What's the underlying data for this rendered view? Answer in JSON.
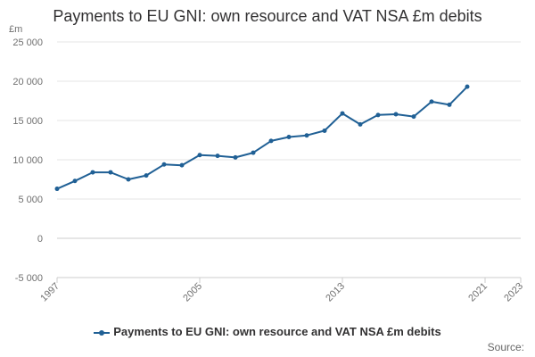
{
  "chart_data": {
    "type": "line",
    "title": "Payments to EU GNI: own resource and VAT NSA £m debits",
    "unit_label": "£m",
    "y_ticks": [
      "25 000",
      "20 000",
      "15 000",
      "10 000",
      "5 000",
      "0",
      "-5 000"
    ],
    "y_tick_values": [
      25000,
      20000,
      15000,
      10000,
      5000,
      0,
      -5000
    ],
    "ylim": [
      -5000,
      25000
    ],
    "xlim": [
      1997,
      2023
    ],
    "x_ticks": [
      "1997",
      "2005",
      "2013",
      "2021",
      "2023"
    ],
    "x_tick_values": [
      1997,
      2005,
      2013,
      2021,
      2023
    ],
    "grid": true,
    "legend_position": "bottom",
    "series": [
      {
        "name": "Payments to EU GNI: own resource and VAT NSA £m debits",
        "color": "#206095",
        "x": [
          1997,
          1998,
          1999,
          2000,
          2001,
          2002,
          2003,
          2004,
          2005,
          2006,
          2007,
          2008,
          2009,
          2010,
          2011,
          2012,
          2013,
          2014,
          2015,
          2016,
          2017,
          2018,
          2019,
          2020
        ],
        "values": [
          6300,
          7300,
          8400,
          8400,
          7500,
          8000,
          9400,
          9300,
          10600,
          10500,
          10300,
          10900,
          12400,
          12900,
          13100,
          13700,
          15900,
          14500,
          15700,
          15800,
          15500,
          17400,
          17000,
          19300
        ]
      }
    ]
  },
  "legend": {
    "label": "Payments to EU GNI: own resource and VAT NSA £m debits"
  },
  "source": {
    "label": "Source:"
  }
}
